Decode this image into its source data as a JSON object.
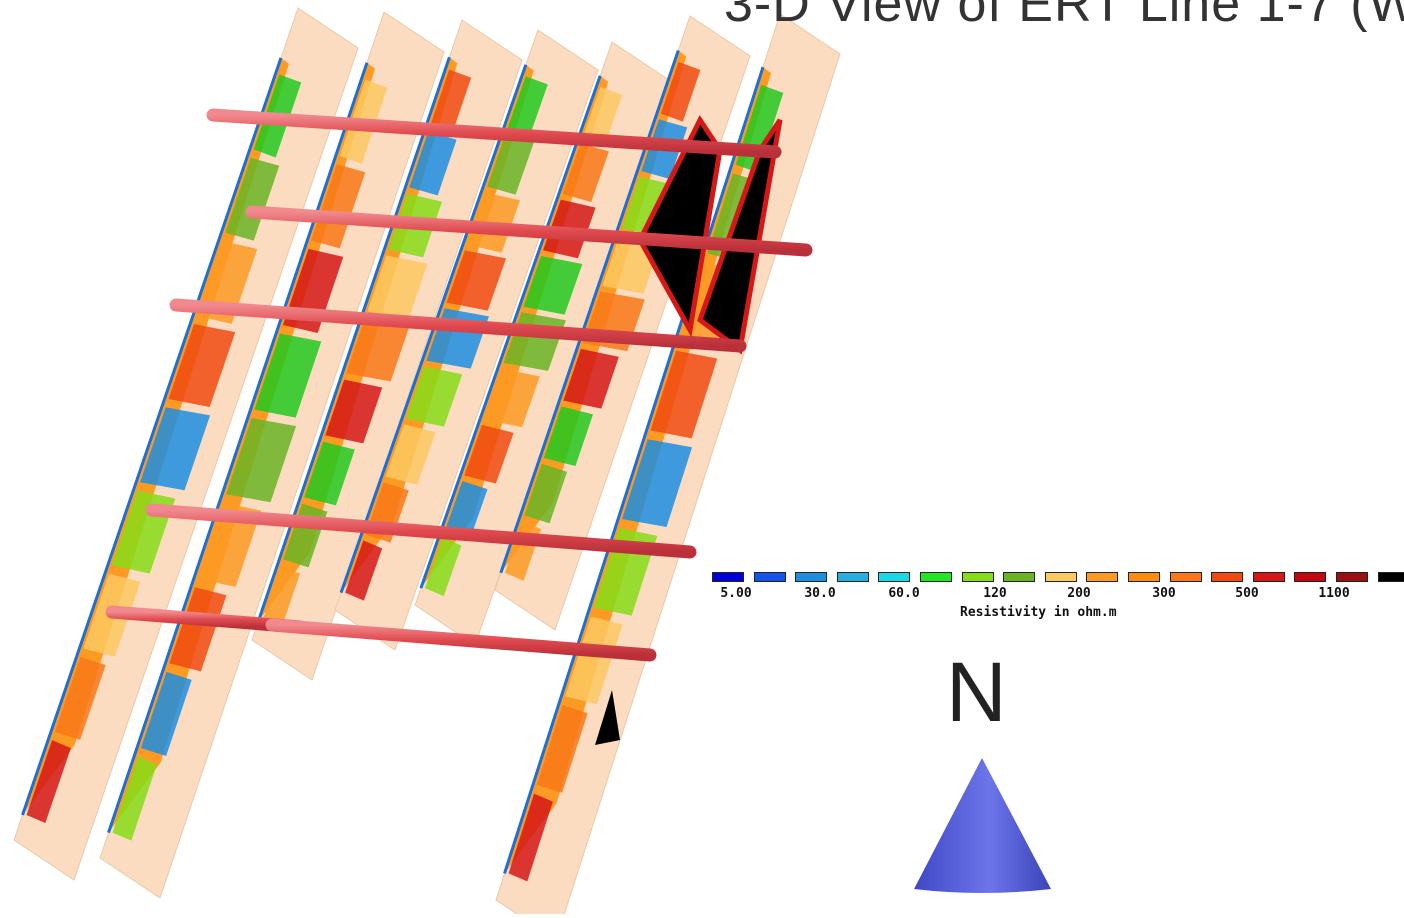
{
  "title": "3-D View of ERT Line 1-7 (W",
  "colors": {
    "section_base": "#fbdcc0",
    "rod": "#e04a4f",
    "north_arrow": "#5b63d8"
  },
  "legend": {
    "label": "Resistivity in ohm.m",
    "swatch_colors": [
      "#0000dd",
      "#1455e8",
      "#1c8ee0",
      "#26aee0",
      "#18d8ea",
      "#22e622",
      "#86dc18",
      "#6ab424",
      "#fcc860",
      "#fc9a24",
      "#fc8c10",
      "#f87818",
      "#f04a10",
      "#d41818",
      "#c00810",
      "#981010",
      "#000000"
    ],
    "tick_labels": [
      "5.00",
      "30.0",
      "60.0",
      "120",
      "200",
      "300",
      "500",
      "1100"
    ]
  },
  "north_label": "N"
}
